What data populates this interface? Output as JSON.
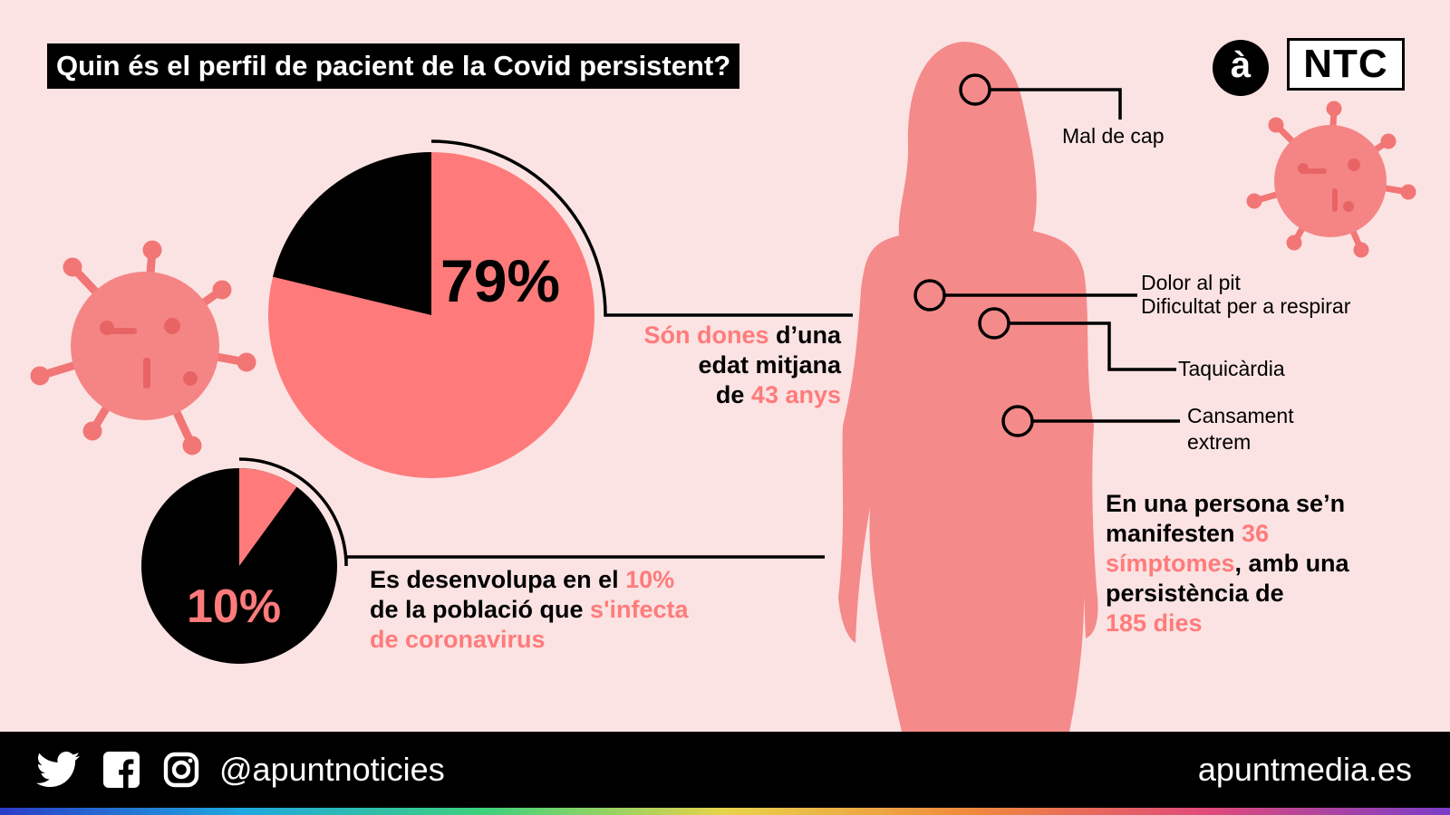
{
  "header": {
    "title": "Quin és el perfil de pacient de la Covid persistent?",
    "logo_a": "à",
    "logo_ntc": "NTC"
  },
  "stats": {
    "women": {
      "percent_label": "79%",
      "value": 79,
      "line1_pink": "Són dones",
      "line1_black": " d’una",
      "line2": "edat mitjana",
      "line3_black": "de ",
      "line3_pink": "43 anys"
    },
    "persistent": {
      "percent_label": "10%",
      "value": 10,
      "line1_black": "Es desenvolupa en el ",
      "line1_pink": "10%",
      "line2_black": "de la població que ",
      "line2_pink": "s'infecta",
      "line3_pink": "de coronavirus"
    }
  },
  "symptoms": {
    "headache": "Mal de cap",
    "chest_pain": "Dolor al pit",
    "breathing": "Dificultat per a respirar",
    "tachycardia": "Taquicàrdia",
    "fatigue_1": "Cansament",
    "fatigue_2": "extrem"
  },
  "summary": {
    "l1": "En una persona se’n",
    "l2_black": "manifesten ",
    "l2_pink": "36",
    "l3_pink": "símptomes",
    "l3_black": ", amb una",
    "l4": "persistència de",
    "l5_pink": "185 dies"
  },
  "footer": {
    "handle": "@apuntnoticies",
    "site": "apuntmedia.es",
    "icons": [
      "twitter-icon",
      "facebook-icon",
      "instagram-icon"
    ]
  },
  "colors": {
    "accent": "#ff7b7b",
    "background": "#fbe3e3",
    "dark": "#000000"
  }
}
